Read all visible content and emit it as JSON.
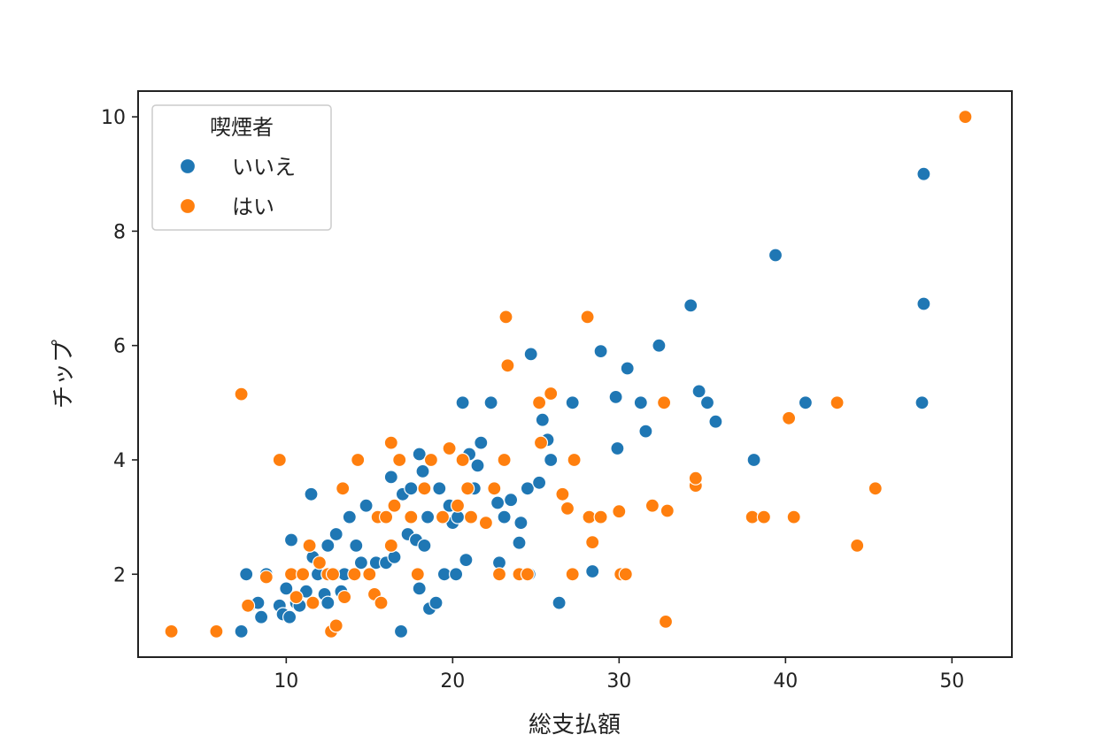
{
  "chart_data": {
    "type": "scatter",
    "title": "",
    "xlabel": "総支払額",
    "ylabel": "チップ",
    "xlim": [
      1.1,
      53.6
    ],
    "ylim": [
      0.55,
      10.45
    ],
    "xticks": [
      10,
      20,
      30,
      40,
      50
    ],
    "yticks": [
      2,
      4,
      6,
      8,
      10
    ],
    "grid": false,
    "legend": {
      "title": "喫煙者",
      "placement": "top-left"
    },
    "series": [
      {
        "name": "いいえ",
        "color": "#1f77b4",
        "points": [
          [
            7.3,
            1.0
          ],
          [
            7.6,
            2.0
          ],
          [
            7.8,
            1.45
          ],
          [
            8.3,
            1.5
          ],
          [
            8.5,
            1.25
          ],
          [
            8.8,
            2.0
          ],
          [
            9.6,
            1.45
          ],
          [
            9.8,
            1.3
          ],
          [
            10.0,
            1.75
          ],
          [
            10.2,
            1.25
          ],
          [
            10.3,
            2.6
          ],
          [
            10.6,
            1.5
          ],
          [
            10.8,
            1.45
          ],
          [
            11.2,
            1.7
          ],
          [
            11.5,
            3.4
          ],
          [
            11.6,
            2.3
          ],
          [
            11.9,
            2.0
          ],
          [
            12.3,
            1.65
          ],
          [
            12.5,
            1.5
          ],
          [
            12.5,
            2.5
          ],
          [
            12.9,
            2.0
          ],
          [
            13.0,
            2.7
          ],
          [
            13.3,
            1.7
          ],
          [
            13.5,
            2.0
          ],
          [
            13.8,
            3.0
          ],
          [
            14.2,
            2.5
          ],
          [
            14.5,
            2.2
          ],
          [
            14.8,
            3.2
          ],
          [
            15.0,
            2.0
          ],
          [
            15.4,
            2.2
          ],
          [
            15.7,
            3.0
          ],
          [
            16.0,
            2.2
          ],
          [
            16.3,
            3.7
          ],
          [
            16.5,
            2.3
          ],
          [
            16.9,
            1.0
          ],
          [
            17.0,
            3.4
          ],
          [
            17.3,
            2.7
          ],
          [
            17.5,
            3.5
          ],
          [
            17.8,
            2.6
          ],
          [
            18.0,
            1.75
          ],
          [
            18.0,
            4.1
          ],
          [
            18.2,
            3.8
          ],
          [
            18.3,
            2.5
          ],
          [
            18.5,
            3.0
          ],
          [
            18.6,
            1.4
          ],
          [
            19.0,
            1.5
          ],
          [
            19.2,
            3.5
          ],
          [
            19.5,
            2.0
          ],
          [
            19.8,
            3.2
          ],
          [
            20.0,
            2.9
          ],
          [
            20.2,
            2.0
          ],
          [
            20.3,
            3.0
          ],
          [
            20.6,
            5.0
          ],
          [
            20.8,
            2.25
          ],
          [
            21.0,
            4.1
          ],
          [
            21.3,
            3.5
          ],
          [
            21.5,
            3.9
          ],
          [
            21.7,
            4.3
          ],
          [
            22.3,
            5.0
          ],
          [
            22.7,
            3.25
          ],
          [
            22.8,
            2.2
          ],
          [
            23.1,
            3.0
          ],
          [
            23.5,
            3.3
          ],
          [
            24.0,
            2.55
          ],
          [
            24.1,
            2.9
          ],
          [
            24.5,
            3.5
          ],
          [
            24.6,
            2.0
          ],
          [
            24.7,
            5.85
          ],
          [
            25.2,
            3.6
          ],
          [
            25.4,
            4.7
          ],
          [
            25.7,
            4.35
          ],
          [
            25.9,
            4.0
          ],
          [
            26.4,
            1.5
          ],
          [
            27.2,
            5.0
          ],
          [
            28.4,
            2.05
          ],
          [
            28.9,
            5.9
          ],
          [
            29.8,
            5.1
          ],
          [
            29.9,
            4.2
          ],
          [
            30.5,
            5.6
          ],
          [
            31.3,
            5.0
          ],
          [
            31.6,
            4.5
          ],
          [
            32.4,
            6.0
          ],
          [
            34.3,
            6.7
          ],
          [
            34.8,
            5.2
          ],
          [
            35.3,
            5.0
          ],
          [
            35.8,
            4.67
          ],
          [
            38.1,
            4.0
          ],
          [
            39.4,
            7.58
          ],
          [
            41.2,
            5.0
          ],
          [
            48.2,
            5.0
          ],
          [
            48.3,
            6.73
          ],
          [
            48.3,
            9.0
          ]
        ]
      },
      {
        "name": "はい",
        "color": "#ff7f0e",
        "points": [
          [
            3.1,
            1.0
          ],
          [
            5.8,
            1.0
          ],
          [
            7.3,
            5.15
          ],
          [
            7.7,
            1.45
          ],
          [
            8.8,
            1.95
          ],
          [
            9.6,
            4.0
          ],
          [
            10.3,
            2.0
          ],
          [
            10.6,
            1.6
          ],
          [
            11.0,
            2.0
          ],
          [
            11.4,
            2.5
          ],
          [
            11.6,
            1.5
          ],
          [
            12.0,
            2.2
          ],
          [
            12.5,
            2.0
          ],
          [
            12.7,
            1.0
          ],
          [
            12.8,
            2.0
          ],
          [
            13.0,
            1.1
          ],
          [
            13.4,
            3.5
          ],
          [
            13.5,
            1.6
          ],
          [
            14.1,
            2.0
          ],
          [
            14.3,
            4.0
          ],
          [
            15.0,
            2.0
          ],
          [
            15.3,
            1.65
          ],
          [
            15.5,
            3.0
          ],
          [
            15.7,
            1.5
          ],
          [
            16.0,
            3.0
          ],
          [
            16.3,
            4.3
          ],
          [
            16.3,
            2.5
          ],
          [
            16.5,
            3.2
          ],
          [
            16.8,
            4.0
          ],
          [
            17.5,
            3.0
          ],
          [
            17.9,
            2.0
          ],
          [
            18.3,
            3.5
          ],
          [
            18.7,
            4.0
          ],
          [
            19.4,
            3.0
          ],
          [
            19.8,
            4.2
          ],
          [
            20.3,
            3.2
          ],
          [
            20.6,
            4.0
          ],
          [
            20.9,
            3.5
          ],
          [
            21.1,
            3.0
          ],
          [
            22.0,
            2.9
          ],
          [
            22.5,
            3.5
          ],
          [
            22.8,
            2.0
          ],
          [
            23.1,
            4.0
          ],
          [
            23.2,
            6.5
          ],
          [
            23.3,
            5.65
          ],
          [
            24.0,
            2.0
          ],
          [
            24.5,
            2.0
          ],
          [
            25.2,
            5.0
          ],
          [
            25.3,
            4.3
          ],
          [
            25.9,
            5.16
          ],
          [
            26.6,
            3.4
          ],
          [
            26.9,
            3.15
          ],
          [
            27.2,
            2.0
          ],
          [
            27.3,
            4.0
          ],
          [
            28.1,
            6.5
          ],
          [
            28.2,
            3.0
          ],
          [
            28.4,
            2.56
          ],
          [
            28.9,
            3.0
          ],
          [
            30.0,
            3.1
          ],
          [
            30.1,
            2.0
          ],
          [
            30.4,
            2.0
          ],
          [
            32.0,
            3.2
          ],
          [
            32.7,
            5.0
          ],
          [
            32.8,
            1.17
          ],
          [
            32.9,
            3.11
          ],
          [
            34.6,
            3.55
          ],
          [
            34.6,
            3.68
          ],
          [
            38.0,
            3.0
          ],
          [
            38.7,
            3.0
          ],
          [
            40.2,
            4.73
          ],
          [
            40.5,
            3.0
          ],
          [
            43.1,
            5.0
          ],
          [
            44.3,
            2.5
          ],
          [
            45.4,
            3.5
          ],
          [
            50.8,
            10.0
          ]
        ]
      }
    ]
  }
}
